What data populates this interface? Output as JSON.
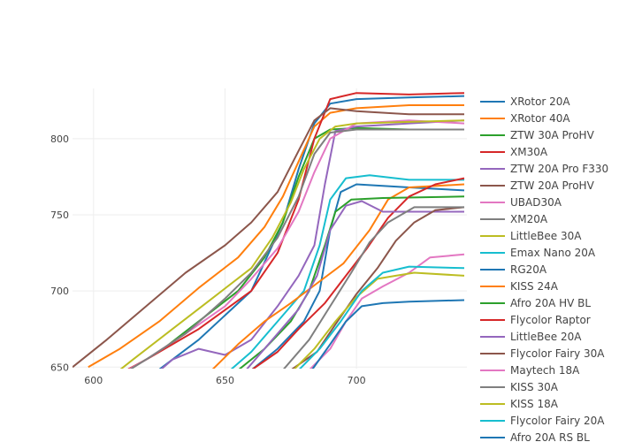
{
  "chart_data": {
    "type": "line",
    "title": "",
    "xlabel": "",
    "ylabel": "",
    "xlim": [
      592,
      742
    ],
    "ylim": [
      649,
      833
    ],
    "xticks": [
      600,
      650,
      700
    ],
    "yticks": [
      650,
      700,
      750,
      800
    ],
    "grid": true,
    "legend": "right",
    "series": [
      {
        "name": "XRotor 20A",
        "color": "#1f77b4",
        "points": [
          [
            600,
            618
          ],
          [
            620,
            642
          ],
          [
            640,
            668
          ],
          [
            660,
            700
          ],
          [
            672,
            745
          ],
          [
            678,
            780
          ],
          [
            684,
            810
          ],
          [
            690,
            823
          ],
          [
            700,
            826
          ],
          [
            720,
            827
          ],
          [
            741,
            828
          ]
        ]
      },
      {
        "name": "XRotor 40A",
        "color": "#ff7f0e",
        "points": [
          [
            598,
            650
          ],
          [
            610,
            662
          ],
          [
            625,
            680
          ],
          [
            640,
            702
          ],
          [
            655,
            722
          ],
          [
            665,
            742
          ],
          [
            672,
            762
          ],
          [
            678,
            785
          ],
          [
            684,
            808
          ],
          [
            690,
            817
          ],
          [
            700,
            820
          ],
          [
            720,
            822
          ],
          [
            741,
            822
          ]
        ]
      },
      {
        "name": "ZTW 30A ProHV",
        "color": "#2ca02c",
        "points": [
          [
            605,
            640
          ],
          [
            625,
            660
          ],
          [
            640,
            680
          ],
          [
            655,
            700
          ],
          [
            665,
            722
          ],
          [
            672,
            745
          ],
          [
            678,
            775
          ],
          [
            684,
            800
          ],
          [
            690,
            806
          ],
          [
            700,
            807
          ],
          [
            720,
            806
          ],
          [
            741,
            806
          ]
        ]
      },
      {
        "name": "XM30A",
        "color": "#d62728",
        "points": [
          [
            604,
            640
          ],
          [
            620,
            655
          ],
          [
            640,
            675
          ],
          [
            660,
            700
          ],
          [
            670,
            725
          ],
          [
            678,
            760
          ],
          [
            684,
            800
          ],
          [
            690,
            826
          ],
          [
            700,
            830
          ],
          [
            720,
            829
          ],
          [
            741,
            830
          ]
        ]
      },
      {
        "name": "ZTW 20A Pro F330",
        "color": "#9467bd",
        "points": [
          [
            620,
            640
          ],
          [
            630,
            655
          ],
          [
            640,
            662
          ],
          [
            650,
            658
          ],
          [
            660,
            668
          ],
          [
            670,
            690
          ],
          [
            678,
            710
          ],
          [
            684,
            730
          ],
          [
            688,
            770
          ],
          [
            692,
            805
          ],
          [
            700,
            808
          ],
          [
            720,
            810
          ],
          [
            741,
            812
          ]
        ]
      },
      {
        "name": "ZTW 20A ProHV",
        "color": "#8c564b",
        "points": [
          [
            592,
            650
          ],
          [
            605,
            668
          ],
          [
            620,
            690
          ],
          [
            635,
            712
          ],
          [
            650,
            730
          ],
          [
            660,
            745
          ],
          [
            670,
            765
          ],
          [
            678,
            792
          ],
          [
            684,
            812
          ],
          [
            690,
            820
          ],
          [
            700,
            818
          ],
          [
            720,
            816
          ],
          [
            741,
            816
          ]
        ]
      },
      {
        "name": "UBAD30A",
        "color": "#e377c2",
        "points": [
          [
            605,
            640
          ],
          [
            620,
            655
          ],
          [
            635,
            672
          ],
          [
            650,
            690
          ],
          [
            660,
            708
          ],
          [
            670,
            728
          ],
          [
            678,
            752
          ],
          [
            684,
            778
          ],
          [
            690,
            800
          ],
          [
            700,
            810
          ],
          [
            720,
            812
          ],
          [
            741,
            810
          ]
        ]
      },
      {
        "name": "XM20A",
        "color": "#7f7f7f",
        "points": [
          [
            606,
            640
          ],
          [
            620,
            655
          ],
          [
            635,
            672
          ],
          [
            650,
            695
          ],
          [
            660,
            712
          ],
          [
            670,
            735
          ],
          [
            678,
            762
          ],
          [
            684,
            790
          ],
          [
            690,
            804
          ],
          [
            700,
            806
          ],
          [
            720,
            806
          ],
          [
            741,
            806
          ]
        ]
      },
      {
        "name": "LittleBee 30A",
        "color": "#bcbd22",
        "points": [
          [
            604,
            640
          ],
          [
            615,
            655
          ],
          [
            630,
            675
          ],
          [
            645,
            695
          ],
          [
            660,
            715
          ],
          [
            668,
            735
          ],
          [
            675,
            758
          ],
          [
            680,
            780
          ],
          [
            686,
            800
          ],
          [
            692,
            808
          ],
          [
            700,
            810
          ],
          [
            720,
            811
          ],
          [
            741,
            812
          ]
        ]
      },
      {
        "name": "Emax Nano 20A",
        "color": "#17becf",
        "points": [
          [
            652,
            648
          ],
          [
            660,
            660
          ],
          [
            670,
            680
          ],
          [
            680,
            700
          ],
          [
            686,
            730
          ],
          [
            690,
            760
          ],
          [
            696,
            774
          ],
          [
            705,
            776
          ],
          [
            720,
            773
          ],
          [
            741,
            773
          ]
        ]
      },
      {
        "name": "RG20A",
        "color": "#1f77b4",
        "points": [
          [
            660,
            648
          ],
          [
            670,
            662
          ],
          [
            680,
            680
          ],
          [
            686,
            700
          ],
          [
            690,
            740
          ],
          [
            694,
            765
          ],
          [
            700,
            770
          ],
          [
            720,
            768
          ],
          [
            741,
            766
          ]
        ]
      },
      {
        "name": "KISS 24A",
        "color": "#ff7f0e",
        "points": [
          [
            645,
            648
          ],
          [
            655,
            665
          ],
          [
            665,
            680
          ],
          [
            675,
            692
          ],
          [
            685,
            705
          ],
          [
            695,
            718
          ],
          [
            705,
            740
          ],
          [
            712,
            760
          ],
          [
            720,
            768
          ],
          [
            741,
            770
          ]
        ]
      },
      {
        "name": "Afro 20A HV BL",
        "color": "#2ca02c",
        "points": [
          [
            655,
            648
          ],
          [
            665,
            662
          ],
          [
            675,
            680
          ],
          [
            682,
            700
          ],
          [
            688,
            730
          ],
          [
            692,
            752
          ],
          [
            698,
            760
          ],
          [
            710,
            761
          ],
          [
            741,
            762
          ]
        ]
      },
      {
        "name": "Flycolor Raptor",
        "color": "#d62728",
        "points": [
          [
            660,
            648
          ],
          [
            670,
            660
          ],
          [
            678,
            675
          ],
          [
            688,
            692
          ],
          [
            696,
            710
          ],
          [
            704,
            728
          ],
          [
            712,
            748
          ],
          [
            720,
            762
          ],
          [
            730,
            770
          ],
          [
            741,
            774
          ]
        ]
      },
      {
        "name": "LittleBee 20A",
        "color": "#9467bd",
        "points": [
          [
            658,
            648
          ],
          [
            668,
            668
          ],
          [
            678,
            688
          ],
          [
            685,
            710
          ],
          [
            690,
            740
          ],
          [
            696,
            756
          ],
          [
            702,
            759
          ],
          [
            710,
            752
          ],
          [
            725,
            752
          ],
          [
            741,
            752
          ]
        ]
      },
      {
        "name": "Flycolor Fairy 30A",
        "color": "#8c564b",
        "points": [
          [
            675,
            648
          ],
          [
            685,
            660
          ],
          [
            692,
            678
          ],
          [
            700,
            698
          ],
          [
            708,
            715
          ],
          [
            715,
            733
          ],
          [
            722,
            745
          ],
          [
            730,
            753
          ],
          [
            741,
            755
          ]
        ]
      },
      {
        "name": "Maytech 18A",
        "color": "#e377c2",
        "points": [
          [
            682,
            648
          ],
          [
            690,
            662
          ],
          [
            696,
            680
          ],
          [
            702,
            695
          ],
          [
            710,
            703
          ],
          [
            720,
            712
          ],
          [
            728,
            722
          ],
          [
            741,
            724
          ]
        ]
      },
      {
        "name": "KISS 30A",
        "color": "#7f7f7f",
        "points": [
          [
            672,
            648
          ],
          [
            682,
            668
          ],
          [
            690,
            690
          ],
          [
            698,
            712
          ],
          [
            705,
            732
          ],
          [
            712,
            745
          ],
          [
            722,
            755
          ],
          [
            741,
            755
          ]
        ]
      },
      {
        "name": "KISS 18A",
        "color": "#bcbd22",
        "points": [
          [
            676,
            648
          ],
          [
            684,
            662
          ],
          [
            692,
            680
          ],
          [
            700,
            696
          ],
          [
            708,
            708
          ],
          [
            715,
            710
          ],
          [
            722,
            712
          ],
          [
            741,
            710
          ]
        ]
      },
      {
        "name": "Flycolor Fairy 20A",
        "color": "#17becf",
        "points": [
          [
            678,
            648
          ],
          [
            686,
            662
          ],
          [
            694,
            680
          ],
          [
            702,
            700
          ],
          [
            710,
            712
          ],
          [
            720,
            716
          ],
          [
            741,
            715
          ]
        ]
      },
      {
        "name": "Afro 20A RS BL",
        "color": "#1f77b4",
        "points": [
          [
            683,
            648
          ],
          [
            690,
            665
          ],
          [
            696,
            680
          ],
          [
            702,
            690
          ],
          [
            710,
            692
          ],
          [
            720,
            693
          ],
          [
            741,
            694
          ]
        ]
      }
    ]
  }
}
